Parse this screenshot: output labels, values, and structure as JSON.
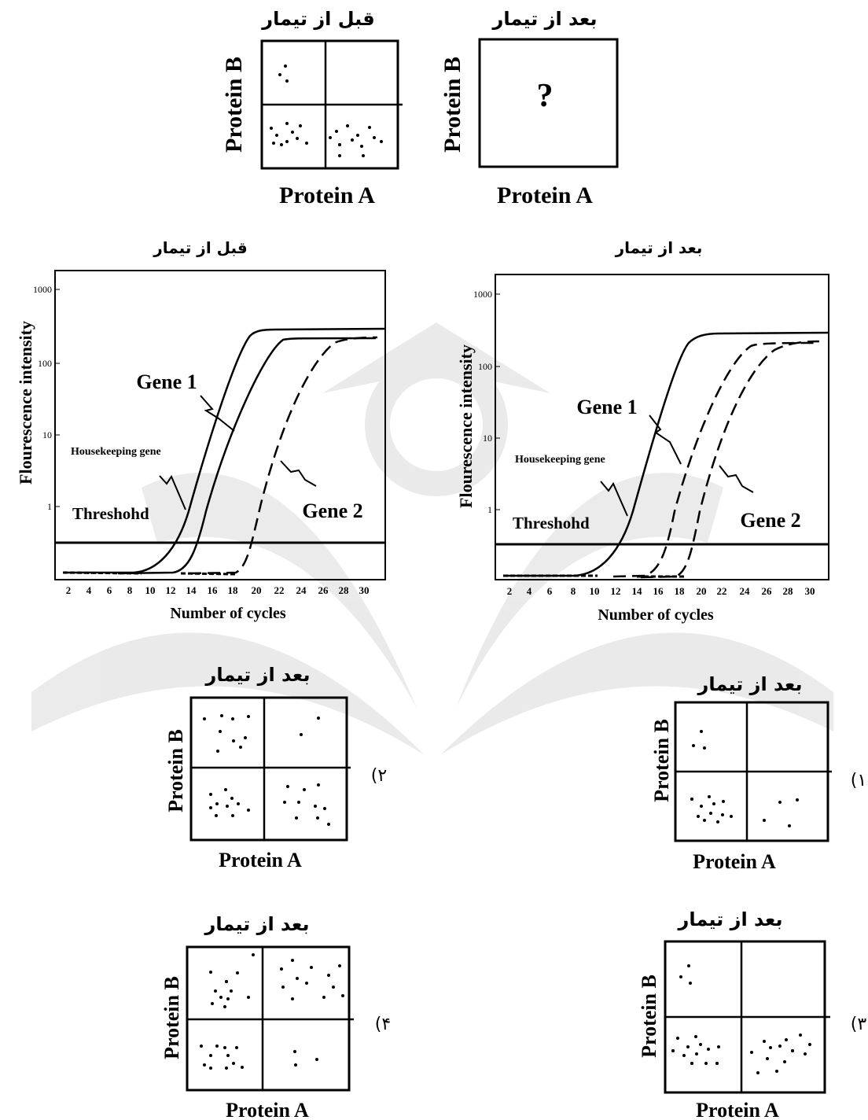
{
  "text": {
    "before": "قبل از تیمار",
    "after": "بعد از تیمار",
    "protein_a": "Protein A",
    "protein_b": "Protein B",
    "question_mark": "?",
    "gene1": "Gene 1",
    "gene2": "Gene 2",
    "housekeeping": "Housekeeping gene",
    "threshold": "Threshohd",
    "x_axis": "Number of cycles",
    "y_axis": "Flourescence intensity",
    "opt1": "(۱",
    "opt2": "(۲",
    "opt3": "(۳",
    "opt4": "(۴"
  },
  "chart_data": [
    {
      "type": "line",
      "title": "قبل از تیمار",
      "xlabel": "Number of cycles",
      "ylabel": "Flourescence intensity",
      "x_ticks": [
        2,
        4,
        6,
        8,
        10,
        12,
        14,
        16,
        18,
        20,
        22,
        24,
        26,
        28,
        30
      ],
      "y_ticks": [
        "1",
        "10",
        "100",
        "1000"
      ],
      "y_scale": "log",
      "threshold_label": "Threshohd",
      "series": [
        {
          "name": "Housekeeping gene",
          "style": "solid",
          "x": [
            8,
            10,
            12,
            14,
            16,
            18,
            20,
            22,
            24,
            26,
            28,
            30
          ],
          "y": [
            0.1,
            0.2,
            0.6,
            2,
            8,
            40,
            230,
            280,
            290,
            290,
            290,
            290
          ]
        },
        {
          "name": "Gene 1",
          "style": "solid",
          "x": [
            10,
            12,
            14,
            16,
            18,
            20,
            22,
            24,
            26,
            28,
            30
          ],
          "y": [
            0.1,
            0.2,
            0.5,
            2,
            8,
            30,
            120,
            200,
            210,
            210,
            210
          ]
        },
        {
          "name": "Gene 2",
          "style": "dashed",
          "x": [
            16,
            18,
            20,
            22,
            24,
            26,
            28,
            30
          ],
          "y": [
            0.1,
            0.2,
            1,
            5,
            25,
            100,
            190,
            210
          ]
        }
      ]
    },
    {
      "type": "line",
      "title": "بعد از تیمار",
      "xlabel": "Number of cycles",
      "ylabel": "Flourescence intensity",
      "x_ticks": [
        2,
        4,
        6,
        8,
        10,
        12,
        14,
        16,
        18,
        20,
        22,
        24,
        26,
        28,
        30
      ],
      "y_ticks": [
        "1",
        "10",
        "100",
        "1000"
      ],
      "y_scale": "log",
      "threshold_label": "Threshohd",
      "series": [
        {
          "name": "Housekeeping gene",
          "style": "solid",
          "x": [
            8,
            10,
            12,
            14,
            16,
            18,
            20,
            22,
            24,
            26,
            28,
            30
          ],
          "y": [
            0.1,
            0.2,
            0.6,
            2,
            8,
            40,
            230,
            280,
            290,
            290,
            290,
            290
          ]
        },
        {
          "name": "Gene 1",
          "style": "dashed",
          "x": [
            14,
            16,
            18,
            20,
            22,
            24,
            26,
            28,
            30
          ],
          "y": [
            0.1,
            0.3,
            1,
            5,
            30,
            130,
            200,
            210,
            210
          ]
        },
        {
          "name": "Gene 2",
          "style": "dashed",
          "x": [
            16,
            18,
            20,
            22,
            24,
            26,
            28,
            30
          ],
          "y": [
            0.1,
            0.2,
            1,
            5,
            25,
            100,
            190,
            210
          ]
        }
      ]
    }
  ]
}
